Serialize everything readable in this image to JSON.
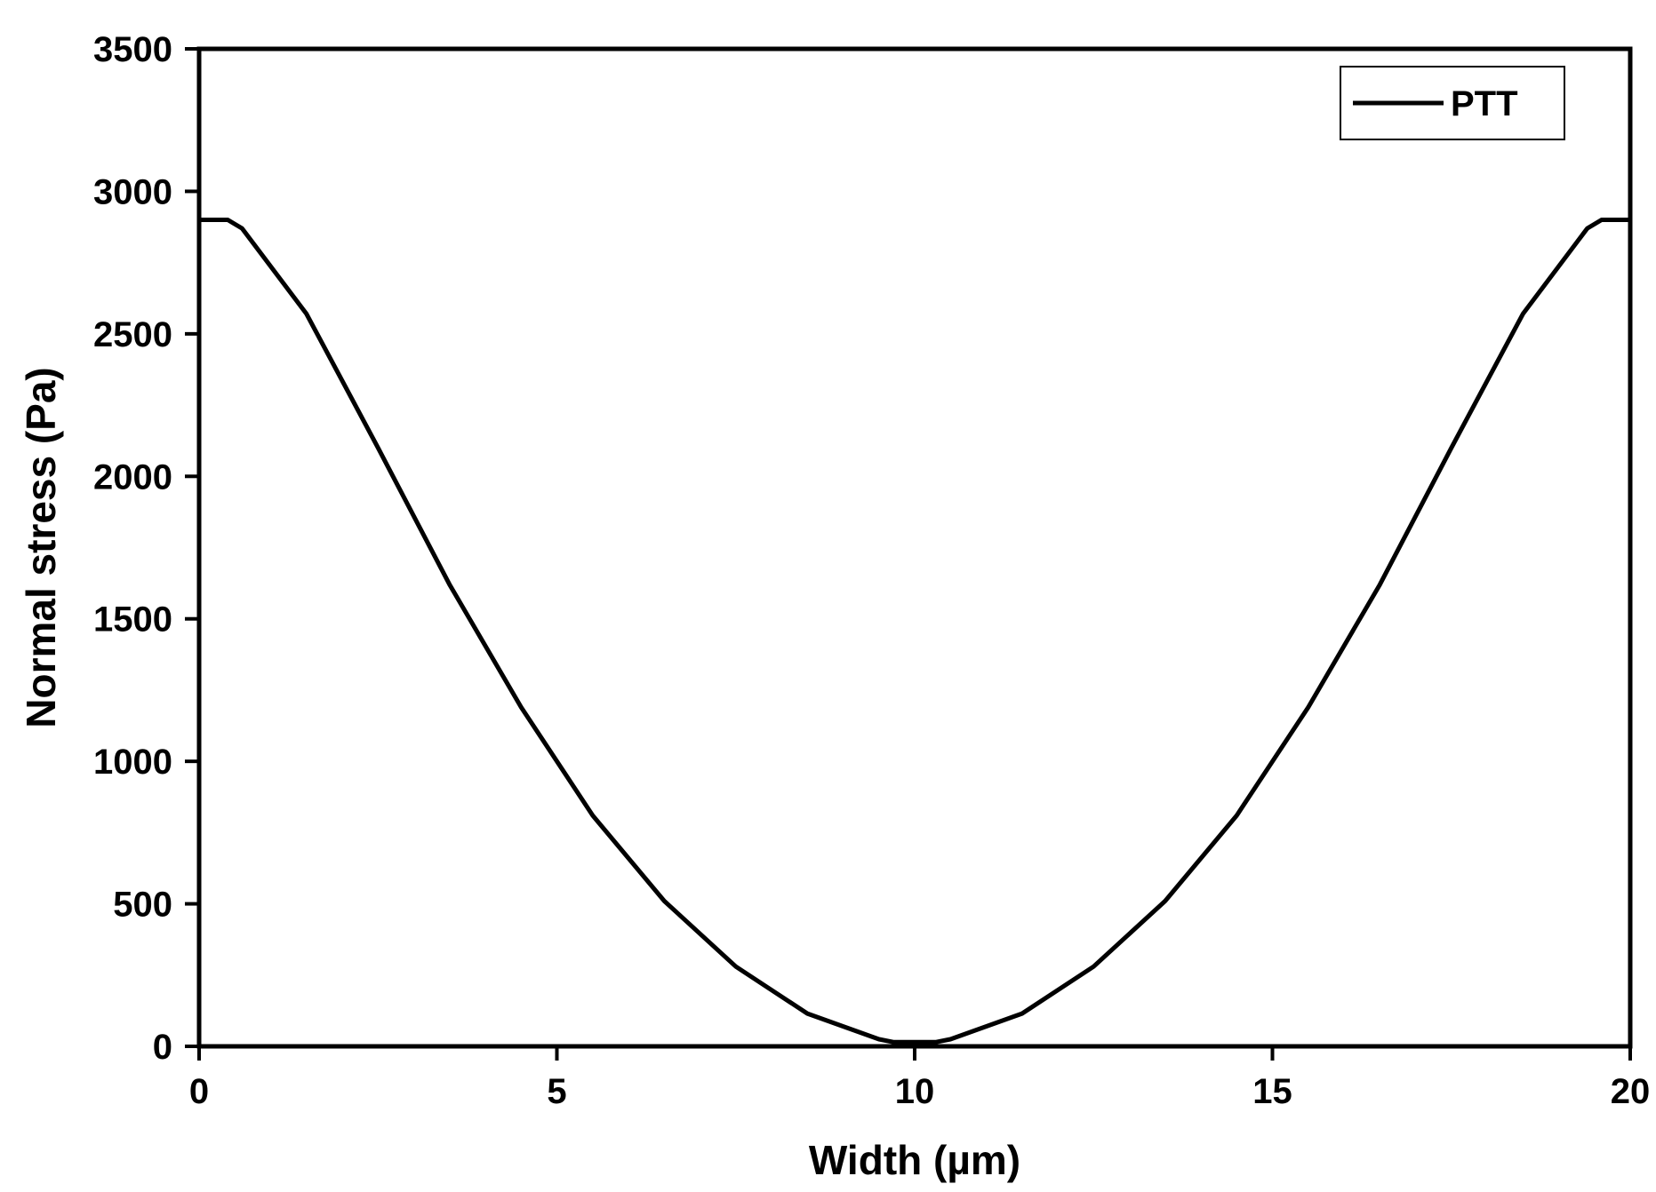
{
  "chart_data": {
    "type": "line",
    "title": "",
    "xlabel": "Width (µm)",
    "ylabel": "Normal stress (Pa)",
    "xlim": [
      0,
      20
    ],
    "ylim": [
      0,
      3500
    ],
    "xticks": [
      0,
      5,
      10,
      15,
      20
    ],
    "yticks": [
      0,
      500,
      1000,
      1500,
      2000,
      2500,
      3000,
      3500
    ],
    "grid": false,
    "legend_position": "top-right",
    "line_color": "#000000",
    "series": [
      {
        "name": "PTT",
        "x": [
          0,
          0.4,
          0.6,
          1.5,
          2.5,
          3.5,
          4.5,
          5.5,
          6.5,
          7.5,
          8.5,
          9.5,
          9.7,
          10.3,
          10.5,
          11.5,
          12.5,
          13.5,
          14.5,
          15.5,
          16.5,
          17.5,
          18.5,
          19.4,
          19.6,
          20
        ],
        "y": [
          2900,
          2900,
          2870,
          2570,
          2100,
          1620,
          1190,
          810,
          510,
          280,
          115,
          25,
          15,
          15,
          25,
          115,
          280,
          510,
          810,
          1190,
          1620,
          2100,
          2570,
          2870,
          2900,
          2900
        ]
      }
    ]
  }
}
